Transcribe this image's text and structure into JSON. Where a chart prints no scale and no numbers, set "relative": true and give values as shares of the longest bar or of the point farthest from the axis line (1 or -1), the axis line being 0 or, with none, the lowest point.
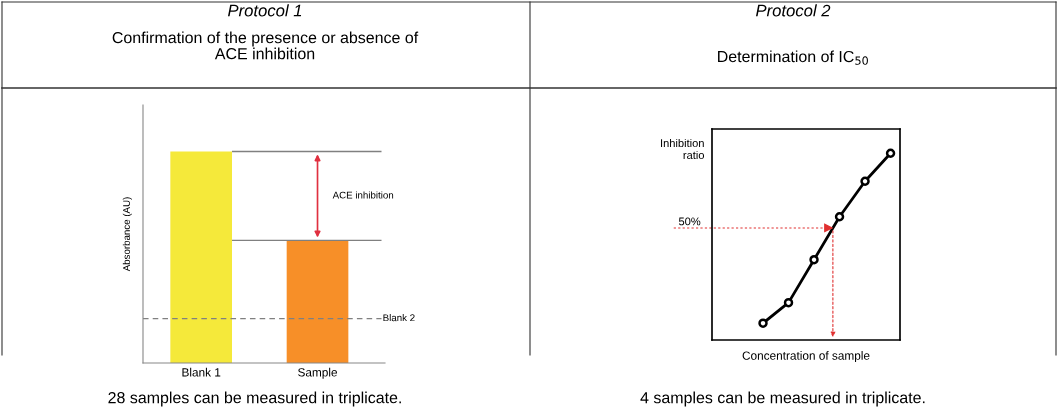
{
  "chart_data": [
    {
      "type": "bar",
      "title": "Protocol 1",
      "subtitle": "Confirmation of the presence or absence of\nACE inhibition",
      "ylabel": "Absorbance (AU)",
      "relative": true,
      "categories": [
        "Blank 1",
        "Sample"
      ],
      "values": [
        1,
        0.58
      ],
      "colors": [
        "#f5e93a",
        "#f78f28"
      ],
      "ref_lines": [
        {
          "axis": "y",
          "value": 1,
          "color": "#808080"
        },
        {
          "axis": "y",
          "value": 0.58,
          "color": "#808080"
        },
        {
          "axis": "y",
          "value": 0.21,
          "label": "Blank 2",
          "color": "#808080",
          "line_style": "dashed"
        }
      ],
      "annotations": [
        "ACE inhibition",
        "28 samples can be measured in triplicate."
      ]
    },
    {
      "type": "line",
      "title": "Protocol 2",
      "subtitle": "Determination of IC$_{50}$",
      "xlabel": "Concentration of sample",
      "ylabel": "Inhibition\nratio",
      "relative": true,
      "marker": "circle",
      "tick_labels": false,
      "categories": [
        null,
        null,
        null,
        null,
        null,
        null
      ],
      "series": [
        {
          "color": "#000000",
          "values": [
            0.09,
            0.2,
            0.43,
            0.66,
            0.85,
            1
          ]
        }
      ],
      "ref_lines": [
        {
          "axis": "y",
          "value": 0.6,
          "color": "#e03030",
          "line_style": "dotted"
        }
      ],
      "annotations": [
        "50%",
        "4 samples can be measured in triplicate."
      ]
    }
  ]
}
